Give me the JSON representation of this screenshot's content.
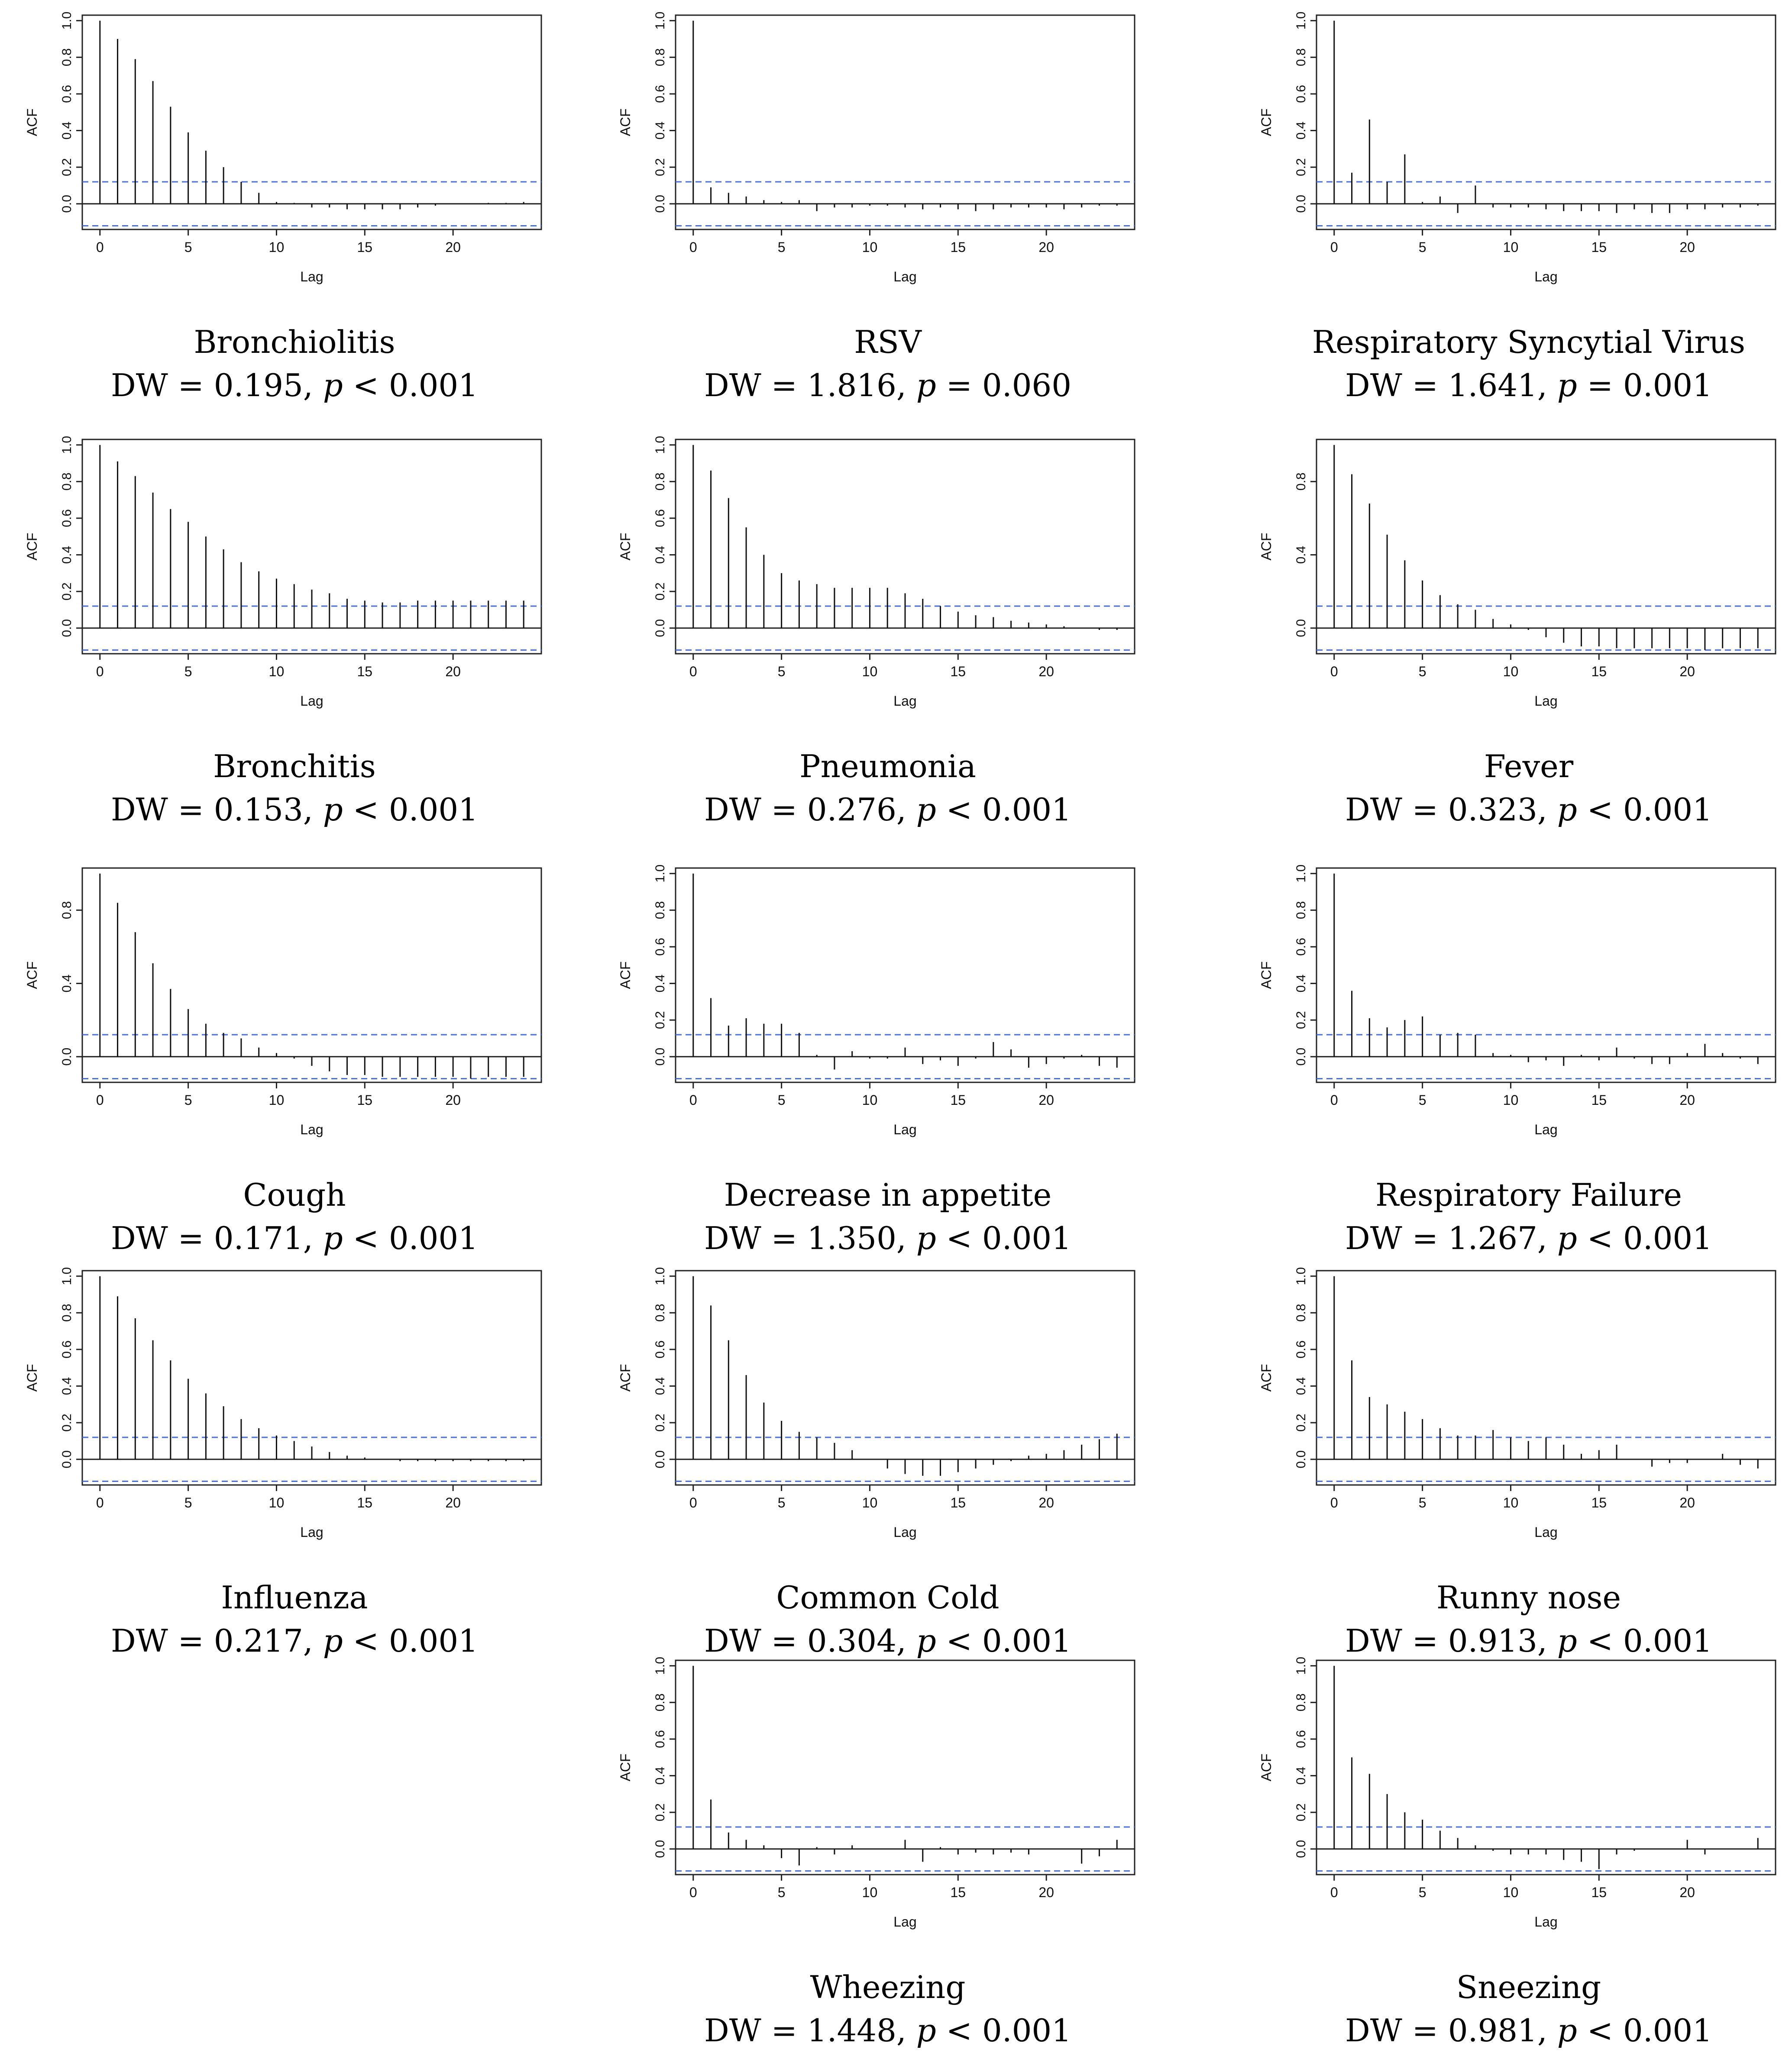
{
  "ci_color": "#4a6fd8",
  "charts": [
    {
      "name": "Bronchiolitis",
      "stat": "DW = 0.195, ",
      "p": "p",
      "pval": " < 0.001",
      "chart_data": {
        "type": "acf",
        "xlabel": "Lag",
        "ylabel": "ACF",
        "ylim": [
          -0.12,
          1.0
        ],
        "yticks": [
          "0.0",
          "0.2",
          "0.4",
          "0.6",
          "0.8",
          "1.0"
        ],
        "xticks": [
          "0",
          "5",
          "10",
          "15",
          "20"
        ],
        "ci": 0.12,
        "values": [
          1.0,
          0.9,
          0.79,
          0.67,
          0.53,
          0.39,
          0.29,
          0.2,
          0.12,
          0.06,
          0.01,
          0.005,
          -0.02,
          -0.02,
          -0.03,
          -0.03,
          -0.03,
          -0.03,
          -0.02,
          -0.01,
          0.0,
          0.0,
          0.005,
          0.005,
          0.01
        ]
      }
    },
    {
      "name": "RSV",
      "stat": "DW = 1.816, ",
      "p": "p",
      "pval": " = 0.060",
      "chart_data": {
        "type": "acf",
        "xlabel": "Lag",
        "ylabel": "ACF",
        "ylim": [
          -0.12,
          1.0
        ],
        "yticks": [
          "0.0",
          "0.2",
          "0.4",
          "0.6",
          "0.8",
          "1.0"
        ],
        "xticks": [
          "0",
          "5",
          "10",
          "15",
          "20"
        ],
        "ci": 0.12,
        "values": [
          1.0,
          0.09,
          0.06,
          0.04,
          0.02,
          0.01,
          0.02,
          -0.04,
          -0.02,
          -0.02,
          -0.01,
          -0.01,
          -0.02,
          -0.03,
          -0.02,
          -0.03,
          -0.04,
          -0.03,
          -0.02,
          -0.02,
          -0.02,
          -0.03,
          -0.02,
          -0.01,
          -0.01
        ]
      }
    },
    {
      "name": "Respiratory Syncytial Virus",
      "stat": "DW = 1.641, ",
      "p": "p",
      "pval": " = 0.001",
      "chart_data": {
        "type": "acf",
        "xlabel": "Lag",
        "ylabel": "ACF",
        "ylim": [
          -0.12,
          1.0
        ],
        "yticks": [
          "0.0",
          "0.2",
          "0.4",
          "0.6",
          "0.8",
          "1.0"
        ],
        "xticks": [
          "0",
          "5",
          "10",
          "15",
          "20"
        ],
        "ci": 0.12,
        "values": [
          1.0,
          0.17,
          0.46,
          0.12,
          0.27,
          0.01,
          0.04,
          -0.05,
          0.1,
          -0.02,
          -0.02,
          -0.02,
          -0.03,
          -0.04,
          -0.04,
          -0.04,
          -0.05,
          -0.03,
          -0.05,
          -0.05,
          -0.03,
          -0.03,
          -0.02,
          -0.02,
          -0.01
        ]
      }
    },
    {
      "name": "Bronchitis",
      "stat": "DW = 0.153, ",
      "p": "p",
      "pval": " < 0.001",
      "chart_data": {
        "type": "acf",
        "xlabel": "Lag",
        "ylabel": "ACF",
        "ylim": [
          -0.12,
          1.0
        ],
        "yticks": [
          "0.0",
          "0.2",
          "0.4",
          "0.6",
          "0.8",
          "1.0"
        ],
        "xticks": [
          "0",
          "5",
          "10",
          "15",
          "20"
        ],
        "ci": 0.12,
        "values": [
          1.0,
          0.91,
          0.83,
          0.74,
          0.65,
          0.58,
          0.5,
          0.43,
          0.36,
          0.31,
          0.27,
          0.24,
          0.21,
          0.19,
          0.16,
          0.15,
          0.14,
          0.14,
          0.15,
          0.15,
          0.15,
          0.15,
          0.15,
          0.15,
          0.15
        ]
      }
    },
    {
      "name": "Pneumonia",
      "stat": "DW = 0.276, ",
      "p": "p",
      "pval": " < 0.001",
      "chart_data": {
        "type": "acf",
        "xlabel": "Lag",
        "ylabel": "ACF",
        "ylim": [
          -0.12,
          1.0
        ],
        "yticks": [
          "0.0",
          "0.2",
          "0.4",
          "0.6",
          "0.8",
          "1.0"
        ],
        "xticks": [
          "0",
          "5",
          "10",
          "15",
          "20"
        ],
        "ci": 0.12,
        "values": [
          1.0,
          0.86,
          0.71,
          0.55,
          0.4,
          0.3,
          0.26,
          0.24,
          0.22,
          0.22,
          0.22,
          0.22,
          0.19,
          0.16,
          0.12,
          0.09,
          0.07,
          0.06,
          0.04,
          0.03,
          0.02,
          0.01,
          0.0,
          -0.01,
          -0.01
        ]
      }
    },
    {
      "name": "Fever",
      "stat": "DW = 0.323, ",
      "p": "p",
      "pval": " < 0.001",
      "chart_data": {
        "type": "acf",
        "xlabel": "Lag",
        "ylabel": "ACF",
        "ylim": [
          -0.12,
          1.0
        ],
        "yticks": [
          "0.0",
          "0.4",
          "0.8"
        ],
        "xticks": [
          "0",
          "5",
          "10",
          "15",
          "20"
        ],
        "ci": 0.12,
        "values": [
          1.0,
          0.84,
          0.68,
          0.51,
          0.37,
          0.26,
          0.18,
          0.13,
          0.1,
          0.05,
          0.02,
          -0.01,
          -0.05,
          -0.08,
          -0.1,
          -0.1,
          -0.11,
          -0.11,
          -0.11,
          -0.11,
          -0.11,
          -0.12,
          -0.11,
          -0.11,
          -0.11
        ]
      }
    },
    {
      "name": "Cough",
      "stat": "DW = 0.171, ",
      "p": "p",
      "pval": " < 0.001",
      "chart_data": {
        "type": "acf",
        "xlabel": "Lag",
        "ylabel": "ACF",
        "ylim": [
          -0.12,
          1.0
        ],
        "yticks": [
          "0.0",
          "0.4",
          "0.8"
        ],
        "xticks": [
          "0",
          "5",
          "10",
          "15",
          "20"
        ],
        "ci": 0.12,
        "values": [
          1.0,
          0.84,
          0.68,
          0.51,
          0.37,
          0.26,
          0.18,
          0.13,
          0.1,
          0.05,
          0.02,
          -0.01,
          -0.05,
          -0.08,
          -0.1,
          -0.1,
          -0.11,
          -0.11,
          -0.11,
          -0.11,
          -0.11,
          -0.12,
          -0.11,
          -0.11,
          -0.11
        ]
      }
    },
    {
      "name": "Decrease in appetite",
      "stat": "DW = 1.350, ",
      "p": "p",
      "pval": " < 0.001",
      "chart_data": {
        "type": "acf",
        "xlabel": "Lag",
        "ylabel": "ACF",
        "ylim": [
          -0.12,
          1.0
        ],
        "yticks": [
          "0.0",
          "0.2",
          "0.4",
          "0.6",
          "0.8",
          "1.0"
        ],
        "xticks": [
          "0",
          "5",
          "10",
          "15",
          "20"
        ],
        "ci": 0.12,
        "values": [
          1.0,
          0.32,
          0.17,
          0.21,
          0.18,
          0.18,
          0.13,
          0.01,
          -0.07,
          0.03,
          -0.01,
          -0.01,
          0.05,
          -0.04,
          -0.02,
          -0.05,
          -0.01,
          0.08,
          0.04,
          -0.06,
          -0.04,
          -0.01,
          0.01,
          -0.05,
          -0.06
        ]
      }
    },
    {
      "name": "Respiratory Failure",
      "stat": "DW = 1.267, ",
      "p": "p",
      "pval": " < 0.001",
      "chart_data": {
        "type": "acf",
        "xlabel": "Lag",
        "ylabel": "ACF",
        "ylim": [
          -0.12,
          1.0
        ],
        "yticks": [
          "0.0",
          "0.2",
          "0.4",
          "0.6",
          "0.8",
          "1.0"
        ],
        "xticks": [
          "0",
          "5",
          "10",
          "15",
          "20"
        ],
        "ci": 0.12,
        "values": [
          1.0,
          0.36,
          0.21,
          0.16,
          0.2,
          0.22,
          0.12,
          0.13,
          0.12,
          0.02,
          0.01,
          -0.03,
          -0.02,
          -0.05,
          0.01,
          -0.02,
          0.05,
          -0.01,
          -0.04,
          -0.04,
          0.02,
          0.07,
          0.02,
          -0.01,
          -0.04
        ]
      }
    },
    {
      "name": "Influenza",
      "stat": "DW = 0.217, ",
      "p": "p",
      "pval": " < 0.001",
      "chart_data": {
        "type": "acf",
        "xlabel": "Lag",
        "ylabel": "ACF",
        "ylim": [
          -0.12,
          1.0
        ],
        "yticks": [
          "0.0",
          "0.2",
          "0.4",
          "0.6",
          "0.8",
          "1.0"
        ],
        "xticks": [
          "0",
          "5",
          "10",
          "15",
          "20"
        ],
        "ci": 0.12,
        "values": [
          1.0,
          0.89,
          0.77,
          0.65,
          0.54,
          0.44,
          0.36,
          0.29,
          0.22,
          0.17,
          0.13,
          0.1,
          0.07,
          0.04,
          0.02,
          0.01,
          0.0,
          -0.01,
          -0.01,
          -0.01,
          -0.01,
          -0.01,
          -0.01,
          -0.01,
          -0.01
        ]
      }
    },
    {
      "name": "Common Cold",
      "stat": "DW = 0.304, ",
      "p": "p",
      "pval": " < 0.001",
      "chart_data": {
        "type": "acf",
        "xlabel": "Lag",
        "ylabel": "ACF",
        "ylim": [
          -0.12,
          1.0
        ],
        "yticks": [
          "0.0",
          "0.2",
          "0.4",
          "0.6",
          "0.8",
          "1.0"
        ],
        "xticks": [
          "0",
          "5",
          "10",
          "15",
          "20"
        ],
        "ci": 0.12,
        "values": [
          1.0,
          0.84,
          0.65,
          0.46,
          0.31,
          0.21,
          0.15,
          0.12,
          0.09,
          0.05,
          0.0,
          -0.05,
          -0.08,
          -0.09,
          -0.09,
          -0.07,
          -0.05,
          -0.03,
          -0.01,
          0.02,
          0.03,
          0.05,
          0.08,
          0.11,
          0.14
        ]
      }
    },
    {
      "name": "Runny nose",
      "stat": "DW = 0.913, ",
      "p": "p",
      "pval": " < 0.001",
      "chart_data": {
        "type": "acf",
        "xlabel": "Lag",
        "ylabel": "ACF",
        "ylim": [
          -0.12,
          1.0
        ],
        "yticks": [
          "0.0",
          "0.2",
          "0.4",
          "0.6",
          "0.8",
          "1.0"
        ],
        "xticks": [
          "0",
          "5",
          "10",
          "15",
          "20"
        ],
        "ci": 0.12,
        "values": [
          1.0,
          0.54,
          0.34,
          0.3,
          0.26,
          0.22,
          0.17,
          0.13,
          0.13,
          0.16,
          0.12,
          0.1,
          0.12,
          0.08,
          0.03,
          0.05,
          0.08,
          0.0,
          -0.04,
          -0.02,
          -0.02,
          0.0,
          0.03,
          -0.03,
          -0.05
        ]
      }
    },
    {
      "name": "Wheezing",
      "stat": "DW = 1.448, ",
      "p": "p",
      "pval": " < 0.001",
      "chart_data": {
        "type": "acf",
        "xlabel": "Lag",
        "ylabel": "ACF",
        "ylim": [
          -0.12,
          1.0
        ],
        "yticks": [
          "0.0",
          "0.2",
          "0.4",
          "0.6",
          "0.8",
          "1.0"
        ],
        "xticks": [
          "0",
          "5",
          "10",
          "15",
          "20"
        ],
        "ci": 0.12,
        "values": [
          1.0,
          0.27,
          0.09,
          0.05,
          0.02,
          -0.05,
          -0.09,
          0.01,
          -0.03,
          0.02,
          0.0,
          0.0,
          0.05,
          -0.07,
          0.01,
          -0.03,
          -0.02,
          -0.03,
          -0.02,
          -0.03,
          0.0,
          0.0,
          -0.08,
          -0.04,
          0.05
        ]
      }
    },
    {
      "name": "Sneezing",
      "stat": "DW = 0.981, ",
      "p": "p",
      "pval": " < 0.001",
      "chart_data": {
        "type": "acf",
        "xlabel": "Lag",
        "ylabel": "ACF",
        "ylim": [
          -0.12,
          1.0
        ],
        "yticks": [
          "0.0",
          "0.2",
          "0.4",
          "0.6",
          "0.8",
          "1.0"
        ],
        "xticks": [
          "0",
          "5",
          "10",
          "15",
          "20"
        ],
        "ci": 0.12,
        "values": [
          1.0,
          0.5,
          0.41,
          0.3,
          0.2,
          0.16,
          0.1,
          0.06,
          0.02,
          -0.01,
          -0.03,
          -0.03,
          -0.03,
          -0.06,
          -0.07,
          -0.11,
          -0.03,
          -0.01,
          0.0,
          0.0,
          0.05,
          -0.03,
          0.0,
          0.0,
          0.06
        ]
      }
    }
  ]
}
